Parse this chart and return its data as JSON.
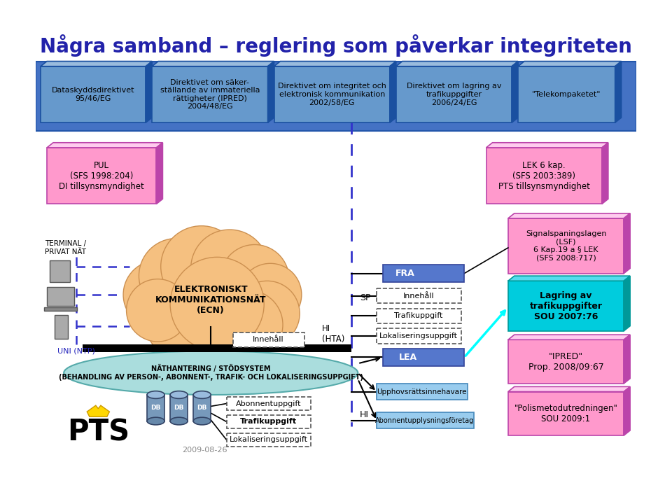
{
  "title": "Några samband – reglering som påverkar integriteten",
  "title_color": "#2222AA",
  "bg_color": "#FFFFFF",
  "top_boxes": [
    {
      "text": "Dataskyddsdirektivet\n95/46/EG"
    },
    {
      "text": "Direktivet om säker-\nställande av immateriella\nrättigheter (IPRED)\n2004/48/EG"
    },
    {
      "text": "Direktivet om integritet och\nelektronisk kommunikation\n2002/58/EG"
    },
    {
      "text": "Direktivet om lagring av\ntrafikuppgifter\n2006/24/EG"
    },
    {
      "text": "\"Telekompaketet\""
    }
  ],
  "pul_text": "PUL\n(SFS 1998:204)\nDI tillsynsmyndighet",
  "lek_text": "LEK 6 kap.\n(SFS 2003:389)\nPTS tillsynsmyndighet",
  "signal_text": "Signalspaningslagen\n(LSF)\n6 Kap.19 a § LEK\n(SFS 2008:717)",
  "lagring_text": "Lagring av\ntrafikuppgifter\nSOU 2007:76",
  "ipred_text": "\"IPRED\"\nProp. 2008/09:67",
  "polismet_text": "\"Polismetodutredningen\"\nSOU 2009:1",
  "terminal_text": "TERMINAL /\nPRIVAT NÄT",
  "ecn_text": "ELEKTRONISKT\nKOMMUNIKATIONSNÄT\n(ECN)",
  "uni_text": "UNI (NTP)",
  "sp_text": "SP",
  "hi_hta_text": "HI\n(HTA)",
  "hi_text": "HI",
  "inhall_text": "Innehåll",
  "fra_text": "FRA",
  "lea_text": "LEA",
  "upphovs_text": "Upphovsrättsinnehavare",
  "abonnent_text": "Abonnentupplysningsföretag",
  "nathantering_text": "NÄTHANTERING / STÖDSYSTEM\n(BEHANDLING AV PERSON-, ABONNENT-, TRAFIK- OCH LOKALISERINGSUPPGIFT)",
  "date_text": "2009-08-26",
  "items_right": [
    "Innehåll",
    "Trafikuppgift",
    "Lokaliseringsuppgift"
  ],
  "items_bottom": [
    "Abonnentuppgift",
    "Trafikuppgift",
    "Lokaliseringsuppgift"
  ]
}
